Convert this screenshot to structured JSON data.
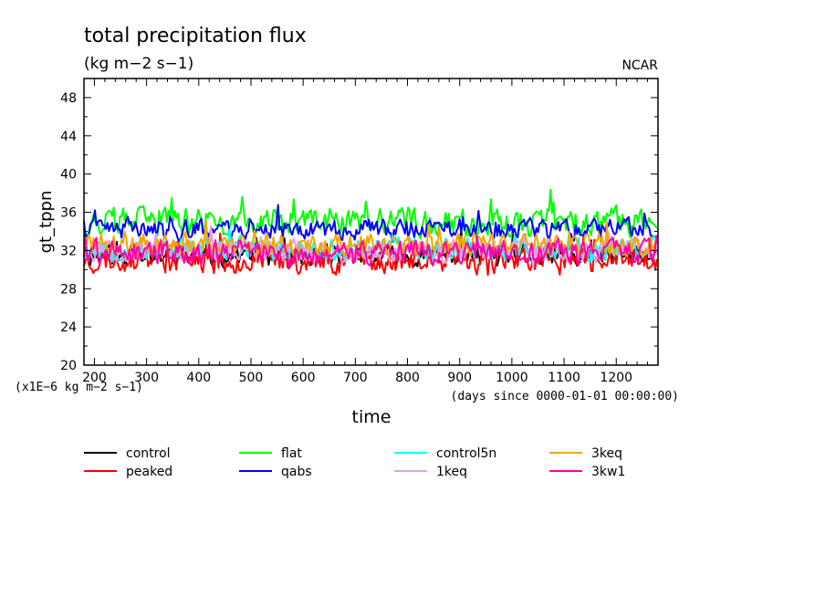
{
  "chart_data": {
    "type": "line",
    "title": "total precipitation flux",
    "subtitle": "(kg m−2 s−1)",
    "institution": "NCAR",
    "xlabel": "time",
    "ylabel": "gt_tppn",
    "x_units_note": "(days since 0000-01-01 00:00:00)",
    "y_units_note": "(x1E−6 kg m−2 s−1)",
    "xlim": [
      180,
      1280
    ],
    "ylim": [
      20,
      50
    ],
    "x_ticks": [
      200,
      300,
      400,
      500,
      600,
      700,
      800,
      900,
      1000,
      1100,
      1200
    ],
    "y_ticks": [
      20,
      24,
      28,
      32,
      36,
      40,
      44,
      48
    ],
    "grid": false,
    "legend_position": "bottom",
    "series": [
      {
        "name": "control",
        "color": "#000000",
        "mean": 31.5,
        "amp": 1.5,
        "seed": 11
      },
      {
        "name": "peaked",
        "color": "#ff0000",
        "mean": 31.0,
        "amp": 1.9,
        "seed": 23
      },
      {
        "name": "flat",
        "color": "#00ff00",
        "mean": 35.0,
        "amp": 2.0,
        "seed": 37
      },
      {
        "name": "qabs",
        "color": "#0000ff",
        "mean": 34.2,
        "amp": 1.4,
        "seed": 41
      },
      {
        "name": "control5n",
        "color": "#00ffff",
        "mean": 32.2,
        "amp": 1.6,
        "seed": 53
      },
      {
        "name": "1keq",
        "color": "#e8a0e0",
        "mean": 32.0,
        "amp": 1.6,
        "seed": 67
      },
      {
        "name": "3keq",
        "color": "#f0a800",
        "mean": 32.6,
        "amp": 1.6,
        "seed": 71
      },
      {
        "name": "3kw1",
        "color": "#ff00aa",
        "mean": 31.8,
        "amp": 1.7,
        "seed": 89
      }
    ]
  }
}
